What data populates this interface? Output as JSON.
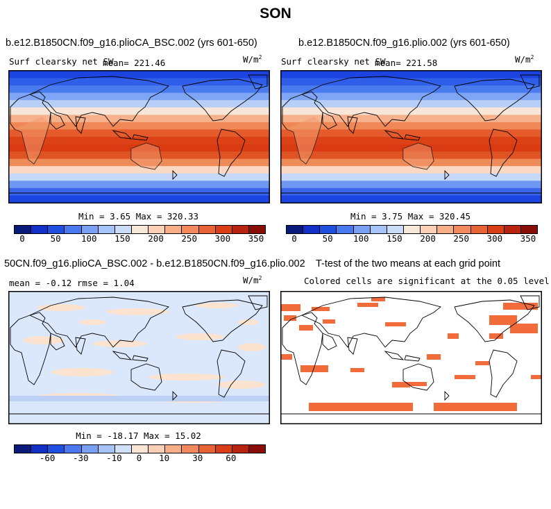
{
  "figure": {
    "title": "SON"
  },
  "panels": {
    "p1": {
      "title": "b.e12.B1850CN.f09_g16.plioCA_BSC.002 (yrs 601-650)",
      "subtitle": "Surf clearsky net SW",
      "mean_label": "mean= 221.46",
      "unit": "W/m",
      "unit_exp": "2",
      "minmax": "Min =   3.65 Max = 320.33"
    },
    "p2": {
      "title": "b.e12.B1850CN.f09_g16.plio.002 (yrs 601-650)",
      "subtitle": "Surf clearsky net SW",
      "mean_label": "mean= 221.58",
      "unit": "W/m",
      "unit_exp": "2",
      "minmax": "Min =   3.75 Max = 320.45"
    },
    "p3": {
      "title": "50CN.f09_g16.plioCA_BSC.002 - b.e12.B1850CN.f09_g16.plio.002",
      "stats": "mean =  -0.12    rmse =   1.04",
      "unit": "W/m",
      "unit_exp": "2",
      "minmax": "Min = -18.17 Max =  15.02"
    },
    "p4": {
      "title": "T-test of the two means at each grid point",
      "subtitle": "Colored cells are significant at the 0.05 level"
    }
  },
  "colorbars": {
    "abs": {
      "ticks": [
        "0",
        "50",
        "100",
        "150",
        "200",
        "250",
        "300",
        "350"
      ],
      "colors": [
        "#0a1a7a",
        "#1030c8",
        "#2050e0",
        "#4a78ee",
        "#7aa0f4",
        "#a6c4f8",
        "#cadcf8",
        "#f7e8dc",
        "#fbd0b6",
        "#f7ad88",
        "#f28a5e",
        "#e86436",
        "#d93e16",
        "#b82410",
        "#8a0e08"
      ]
    },
    "diff": {
      "ticks": [
        "-60",
        "-30",
        "-10",
        "0",
        "10",
        "30",
        "60"
      ],
      "colors": [
        "#0a1a7a",
        "#1030c8",
        "#2050e0",
        "#4a78ee",
        "#7aa0f4",
        "#a6c4f8",
        "#d2e2fa",
        "#fbe5d4",
        "#fbd0b6",
        "#f7ad88",
        "#f28a5e",
        "#e86436",
        "#d93e16",
        "#b82410",
        "#8a0e08"
      ]
    }
  },
  "map_colors": {
    "abs_bands": [
      "#1c44e0",
      "#2f5fe8",
      "#4a7cf0",
      "#7fa6f4",
      "#b8cff8",
      "#f8e6d8",
      "#f6b28c",
      "#ef8756",
      "#e65b2c",
      "#dd4217",
      "#d93a12",
      "#e05322",
      "#ee8b58",
      "#fbd8c4",
      "#c6d8f8",
      "#6e98f2",
      "#3a64ea",
      "#1c44e0"
    ],
    "land": "#f29a70",
    "ice": "#3f68ea",
    "diff_pos": "#fbe3d0",
    "diff_neg": "#dbe7fb",
    "ttest": "#f26b3a"
  }
}
